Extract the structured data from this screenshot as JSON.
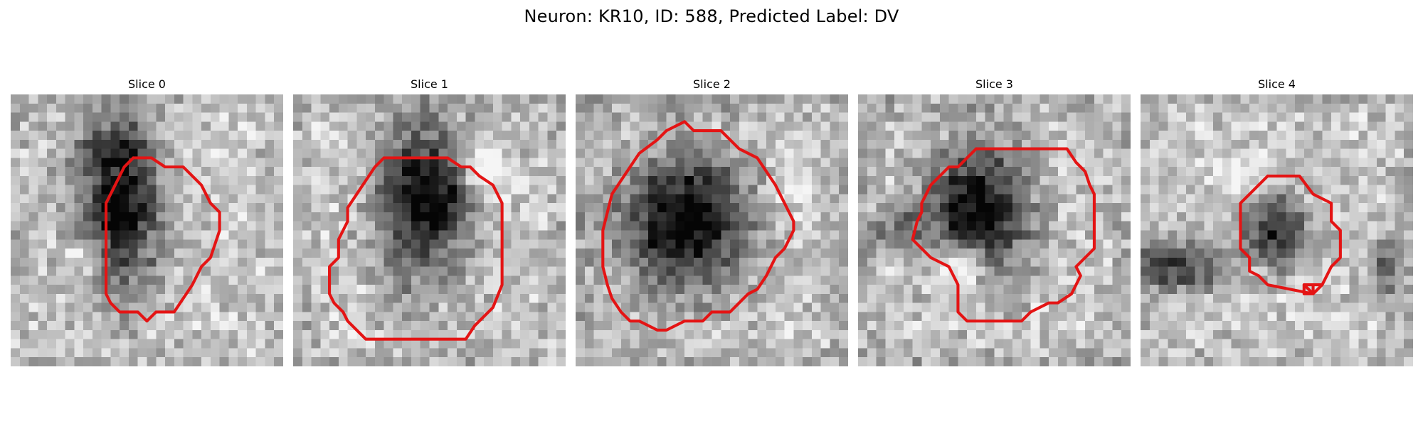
{
  "figure": {
    "title": "Neuron: KR10, ID: 588, Predicted Label: DV",
    "outline_color": "#e41414"
  },
  "slices": [
    {
      "label": "Slice 0",
      "roi_outline": "contour",
      "seed": 11,
      "dark_blobs": [
        [
          12,
          12,
          4.8,
          9.5,
          0.78
        ],
        [
          10.5,
          5.5,
          3.0,
          1.8,
          0.25
        ]
      ],
      "bright_spots": [
        [
          8,
          18,
          2.2,
          0.35
        ]
      ],
      "border_shade": 0.05
    },
    {
      "label": "Slice 1",
      "roi_outline": "contour",
      "seed": 23,
      "dark_blobs": [
        [
          14,
          12,
          5.0,
          9.0,
          0.72
        ],
        [
          18,
          10.5,
          3.0,
          4.0,
          0.28
        ]
      ],
      "bright_spots": [
        [
          20.5,
          8.5,
          2.8,
          0.45
        ]
      ],
      "border_shade": 0.08
    },
    {
      "label": "Slice 2",
      "roi_outline": "contour",
      "seed": 37,
      "dark_blobs": [
        [
          12,
          14,
          7.0,
          7.5,
          0.85
        ]
      ],
      "bright_spots": [
        [
          24,
          9,
          3.0,
          0.15
        ]
      ],
      "border_shade": 0.12
    },
    {
      "label": "Slice 3",
      "roi_outline": "contour",
      "seed": 41,
      "dark_blobs": [
        [
          13,
          13,
          6.0,
          7.5,
          0.82
        ],
        [
          4,
          15,
          3.0,
          2.5,
          0.3
        ]
      ],
      "bright_spots": [
        [
          11,
          19,
          3.2,
          0.6
        ]
      ],
      "border_shade": 0.1
    },
    {
      "label": "Slice 4",
      "roi_outline": "contour",
      "seed": 53,
      "dark_blobs": [
        [
          15,
          15,
          3.8,
          3.8,
          0.62
        ],
        [
          4,
          19,
          5.0,
          3.0,
          0.55
        ],
        [
          27,
          19,
          1.8,
          3.0,
          0.4
        ]
      ],
      "bright_spots": [
        [
          10,
          9,
          2.5,
          0.25
        ]
      ],
      "border_shade": 0.05
    }
  ]
}
